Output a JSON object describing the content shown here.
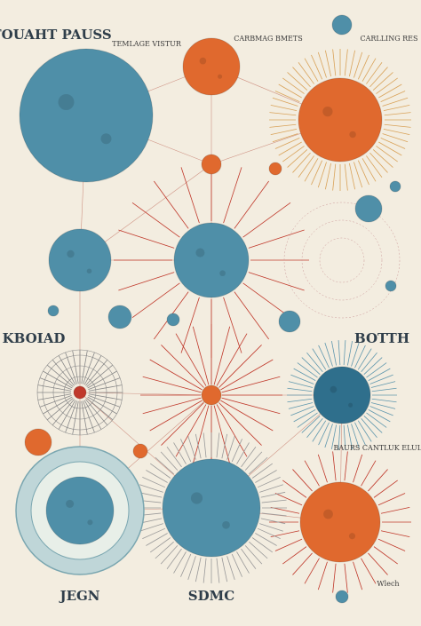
{
  "labels": [
    "TURFOUAHT PAUSS",
    "TEMLAGE VISTUR",
    "CARBMAG BMETS",
    "CARLLING RES",
    "KBOIAD",
    "BOTTH",
    "BAURS CANTLUK ELULAONC",
    "JEGN",
    "SDMC",
    "Wlech"
  ]
}
